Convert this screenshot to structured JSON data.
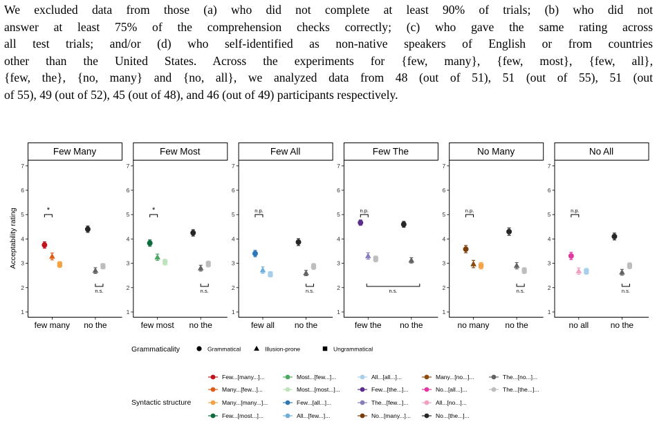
{
  "paragraph": {
    "lines": [
      "We excluded data from those (a) who did not complete at least 90% of trials; (b) who did not",
      "answer at least 75% of the comprehension checks correctly; (c) who gave the same rating across",
      "all test trials; and/or (d) who self-identified as non-native speakers of English or from countries",
      "other than the United States.  Across the experiments for {few, many}, {few, most}, {few, all},",
      "{few, the}, {no, many} and {no, all}, we analyzed data from 48 (out of 51), 51 (out of 55), 51 (out",
      "of 55), 49 (out of 52), 45 (out of 48), and 46 (out of 49) participants respectively."
    ]
  },
  "colors": {
    "few_many": "#c0141c",
    "many_few": "#e05d18",
    "many_many": "#f3a244",
    "few_most": "#0d6b3c",
    "most_few": "#4aa860",
    "most_most": "#bfe3bc",
    "few_all": "#2f78b6",
    "all_few": "#6eaedb",
    "all_all": "#a8cfe9",
    "few_the": "#5b2d8c",
    "the_few": "#8a7dbd",
    "many_no": "#8b4a0f",
    "no_many": "#7a3c08",
    "no_all_pink": "#e03a9f",
    "all_no": "#f0a0c0",
    "the_no": "#636363",
    "the_the": "#bdbdbd",
    "no_the": "#262626"
  },
  "chart_data": {
    "type": "scatter",
    "ylabel": "Acceptability rating",
    "ylim": [
      1,
      7
    ],
    "yticks": [
      "1",
      "2",
      "3",
      "4",
      "5",
      "6",
      "7"
    ],
    "panels": [
      {
        "title": "Few Many",
        "groups": [
          "few many",
          "no the"
        ],
        "points": [
          {
            "group": 0,
            "offset": -1,
            "shape": "circle",
            "color": "few_many",
            "value": 3.75,
            "err": 0.13
          },
          {
            "group": 0,
            "offset": 0,
            "shape": "triangle",
            "color": "many_few",
            "value": 3.28,
            "err": 0.14
          },
          {
            "group": 0,
            "offset": 1,
            "shape": "square",
            "color": "many_many",
            "value": 2.95,
            "err": 0.12
          },
          {
            "group": 1,
            "offset": -1,
            "shape": "circle",
            "color": "no_the",
            "value": 4.4,
            "err": 0.13
          },
          {
            "group": 1,
            "offset": 0,
            "shape": "triangle",
            "color": "the_no",
            "value": 2.7,
            "err": 0.12
          },
          {
            "group": 1,
            "offset": 1,
            "shape": "square",
            "color": "the_the",
            "value": 2.88,
            "err": 0.11
          }
        ],
        "brackets": [
          {
            "group": 0,
            "from": -1,
            "to": 0,
            "y": 5.0,
            "label": "*",
            "dir": "down"
          },
          {
            "group": 1,
            "from": 0,
            "to": 1,
            "y": 2.05,
            "label": "n.s.",
            "dir": "up"
          }
        ]
      },
      {
        "title": "Few Most",
        "groups": [
          "few most",
          "no the"
        ],
        "points": [
          {
            "group": 0,
            "offset": -1,
            "shape": "circle",
            "color": "few_most",
            "value": 3.83,
            "err": 0.13
          },
          {
            "group": 0,
            "offset": 0,
            "shape": "triangle",
            "color": "most_few",
            "value": 3.25,
            "err": 0.13
          },
          {
            "group": 0,
            "offset": 1,
            "shape": "square",
            "color": "most_most",
            "value": 3.05,
            "err": 0.12
          },
          {
            "group": 1,
            "offset": -1,
            "shape": "circle",
            "color": "no_the",
            "value": 4.25,
            "err": 0.13
          },
          {
            "group": 1,
            "offset": 0,
            "shape": "triangle",
            "color": "the_no",
            "value": 2.8,
            "err": 0.12
          },
          {
            "group": 1,
            "offset": 1,
            "shape": "square",
            "color": "the_the",
            "value": 2.97,
            "err": 0.12
          }
        ],
        "brackets": [
          {
            "group": 0,
            "from": -1,
            "to": 0,
            "y": 5.0,
            "label": "*",
            "dir": "down"
          },
          {
            "group": 1,
            "from": 0,
            "to": 1,
            "y": 2.05,
            "label": "n.s.",
            "dir": "up"
          }
        ]
      },
      {
        "title": "Few All",
        "groups": [
          "few all",
          "no the"
        ],
        "points": [
          {
            "group": 0,
            "offset": -1,
            "shape": "circle",
            "color": "few_all",
            "value": 3.4,
            "err": 0.13
          },
          {
            "group": 0,
            "offset": 0,
            "shape": "triangle",
            "color": "all_few",
            "value": 2.72,
            "err": 0.13
          },
          {
            "group": 0,
            "offset": 1,
            "shape": "square",
            "color": "all_all",
            "value": 2.55,
            "err": 0.11
          },
          {
            "group": 1,
            "offset": -1,
            "shape": "circle",
            "color": "no_the",
            "value": 3.87,
            "err": 0.14
          },
          {
            "group": 1,
            "offset": 0,
            "shape": "triangle",
            "color": "the_no",
            "value": 2.6,
            "err": 0.11
          },
          {
            "group": 1,
            "offset": 1,
            "shape": "square",
            "color": "the_the",
            "value": 2.87,
            "err": 0.12
          }
        ],
        "brackets": [
          {
            "group": 0,
            "from": -1,
            "to": 0,
            "y": 5.0,
            "label": "n.p.",
            "dir": "down"
          },
          {
            "group": 1,
            "from": 0,
            "to": 1,
            "y": 2.05,
            "label": "n.s.",
            "dir": "up"
          }
        ]
      },
      {
        "title": "Few The",
        "groups": [
          "few the",
          "no the"
        ],
        "points": [
          {
            "group": 0,
            "offset": -1,
            "shape": "circle",
            "color": "few_the",
            "value": 4.67,
            "err": 0.11
          },
          {
            "group": 0,
            "offset": 0,
            "shape": "triangle",
            "color": "the_few",
            "value": 3.3,
            "err": 0.13
          },
          {
            "group": 0,
            "offset": 1,
            "shape": "square",
            "color": "the_the",
            "value": 3.18,
            "err": 0.12
          },
          {
            "group": 1,
            "offset": -1,
            "shape": "circle",
            "color": "no_the",
            "value": 4.6,
            "err": 0.12
          },
          {
            "group": 1,
            "offset": 0,
            "shape": "triangle",
            "color": "the_no",
            "value": 3.12,
            "err": 0.11
          }
        ],
        "brackets": [
          {
            "group": 0,
            "from": -1,
            "to": 0,
            "y": 5.0,
            "label": "n.p.",
            "dir": "down"
          },
          {
            "group": "span",
            "from": 0,
            "to": 0,
            "y": 2.05,
            "label": "n.s.",
            "dir": "up"
          }
        ]
      },
      {
        "title": "No Many",
        "groups": [
          "no many",
          "no the"
        ],
        "points": [
          {
            "group": 0,
            "offset": -1,
            "shape": "circle",
            "color": "no_many",
            "value": 3.58,
            "err": 0.15
          },
          {
            "group": 0,
            "offset": 0,
            "shape": "triangle",
            "color": "many_no",
            "value": 2.97,
            "err": 0.15
          },
          {
            "group": 0,
            "offset": 1,
            "shape": "square",
            "color": "many_many",
            "value": 2.9,
            "err": 0.13
          },
          {
            "group": 1,
            "offset": -1,
            "shape": "circle",
            "color": "no_the",
            "value": 4.3,
            "err": 0.15
          },
          {
            "group": 1,
            "offset": 0,
            "shape": "triangle",
            "color": "the_no",
            "value": 2.9,
            "err": 0.13
          },
          {
            "group": 1,
            "offset": 1,
            "shape": "square",
            "color": "the_the",
            "value": 2.7,
            "err": 0.12
          }
        ],
        "brackets": [
          {
            "group": 0,
            "from": -1,
            "to": 0,
            "y": 5.0,
            "label": "n.p.",
            "dir": "down"
          },
          {
            "group": 1,
            "from": 0,
            "to": 1,
            "y": 2.05,
            "label": "n.s.",
            "dir": "up"
          }
        ]
      },
      {
        "title": "No All",
        "groups": [
          "no all",
          "no the"
        ],
        "points": [
          {
            "group": 0,
            "offset": -1,
            "shape": "circle",
            "color": "no_all_pink",
            "value": 3.3,
            "err": 0.15
          },
          {
            "group": 0,
            "offset": 0,
            "shape": "triangle",
            "color": "all_no",
            "value": 2.68,
            "err": 0.13
          },
          {
            "group": 0,
            "offset": 1,
            "shape": "square",
            "color": "all_all",
            "value": 2.67,
            "err": 0.12
          },
          {
            "group": 1,
            "offset": -1,
            "shape": "circle",
            "color": "no_the",
            "value": 4.1,
            "err": 0.14
          },
          {
            "group": 1,
            "offset": 0,
            "shape": "triangle",
            "color": "the_no",
            "value": 2.63,
            "err": 0.12
          },
          {
            "group": 1,
            "offset": 1,
            "shape": "square",
            "color": "the_the",
            "value": 2.9,
            "err": 0.12
          }
        ],
        "brackets": [
          {
            "group": 0,
            "from": -1,
            "to": 0,
            "y": 5.0,
            "label": "n.p.",
            "dir": "down"
          },
          {
            "group": 1,
            "from": 0,
            "to": 1,
            "y": 2.05,
            "label": "n.s.",
            "dir": "up"
          }
        ]
      }
    ],
    "legend_shape": {
      "title": "Grammaticality",
      "items": [
        {
          "label": "Grammatical",
          "shape": "circle"
        },
        {
          "label": "Illusion-prone",
          "shape": "triangle"
        },
        {
          "label": "Ungrammatical",
          "shape": "square"
        }
      ]
    },
    "legend_structure": {
      "title": "Syntactic structure",
      "columns": [
        [
          {
            "label": "Few...[many...]...",
            "color": "few_many"
          },
          {
            "label": "Many...[few...]...",
            "color": "many_few"
          },
          {
            "label": "Many...[many...]...",
            "color": "many_many"
          },
          {
            "label": "Few...[most...]...",
            "color": "few_most"
          }
        ],
        [
          {
            "label": "Most...[few...]...",
            "color": "most_few"
          },
          {
            "label": "Most...[most...]...",
            "color": "most_most"
          },
          {
            "label": "Few...[all...]...",
            "color": "few_all"
          },
          {
            "label": "All...[few...]...",
            "color": "all_few"
          }
        ],
        [
          {
            "label": "All...[all...]...",
            "color": "all_all"
          },
          {
            "label": "Few...[the...]...",
            "color": "few_the"
          },
          {
            "label": "The...[few...]...",
            "color": "the_few"
          },
          {
            "label": "No...[many...]...",
            "color": "no_many"
          }
        ],
        [
          {
            "label": "Many...[no...]...",
            "color": "many_no"
          },
          {
            "label": "No...[all...]...",
            "color": "no_all_pink"
          },
          {
            "label": "All...[no...]...",
            "color": "all_no"
          },
          {
            "label": "No...[the...]...",
            "color": "no_the"
          }
        ],
        [
          {
            "label": "The...[no...]...",
            "color": "the_no"
          },
          {
            "label": "The...[the...]...",
            "color": "the_the"
          }
        ]
      ]
    }
  }
}
